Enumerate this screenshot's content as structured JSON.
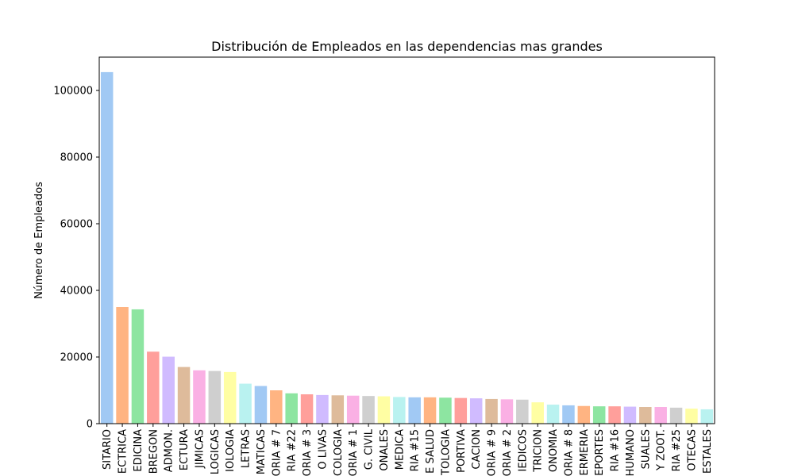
{
  "chart_data": {
    "type": "bar",
    "title": "Distribución de Empleados en las dependencias mas grandes",
    "xlabel": "",
    "ylabel": "Número de Empleados",
    "ylim": [
      0,
      110000
    ],
    "yticks": [
      0,
      20000,
      40000,
      60000,
      80000,
      100000
    ],
    "yticklabels": [
      "0",
      "20000",
      "40000",
      "60000",
      "80000",
      "100000"
    ],
    "grid": false,
    "categories": [
      "SITARIO",
      "ECTRICA",
      "EDICINA",
      "BREGON",
      "ADMON.",
      "ECTURA",
      "JIMICAS",
      "LOGICAS",
      "IOLOGIA",
      "LETRAS",
      "MATICAS",
      "ORIA # 7",
      "RIA #22",
      "ORIA # 3",
      "O LIVAS",
      "COLOGIA",
      "ORIA # 1",
      "G. CIVIL",
      "ONALES",
      "MEDICA",
      "RIA #15",
      "E SALUD",
      "TOLOGIA",
      "PORTIVA",
      "CACION",
      "ORIA # 9",
      "ORIA # 2",
      "IEDICOS",
      "TRICION",
      "ONOMIA",
      "ORIA # 8",
      "ERMERIA",
      "EPORTES",
      "RIA #16",
      "HUMANO",
      "SUALES",
      "Y ZOOT.",
      "RIA #25",
      "OTECAS",
      "ESTALES"
    ],
    "values": [
      105500,
      35000,
      34300,
      21600,
      20100,
      17000,
      16000,
      15800,
      15500,
      12000,
      11300,
      10000,
      9100,
      8800,
      8600,
      8500,
      8400,
      8300,
      8200,
      8000,
      7900,
      7900,
      7800,
      7700,
      7600,
      7400,
      7300,
      7200,
      6400,
      5700,
      5500,
      5300,
      5200,
      5200,
      5100,
      5000,
      5000,
      4800,
      4500,
      4300
    ],
    "colors": [
      "#a1c9f4",
      "#ffb482",
      "#8de5a1",
      "#ff9f9b",
      "#d0bbff",
      "#debb9b",
      "#fab0e4",
      "#cfcfcf",
      "#fffea3",
      "#b9f2f0"
    ]
  }
}
